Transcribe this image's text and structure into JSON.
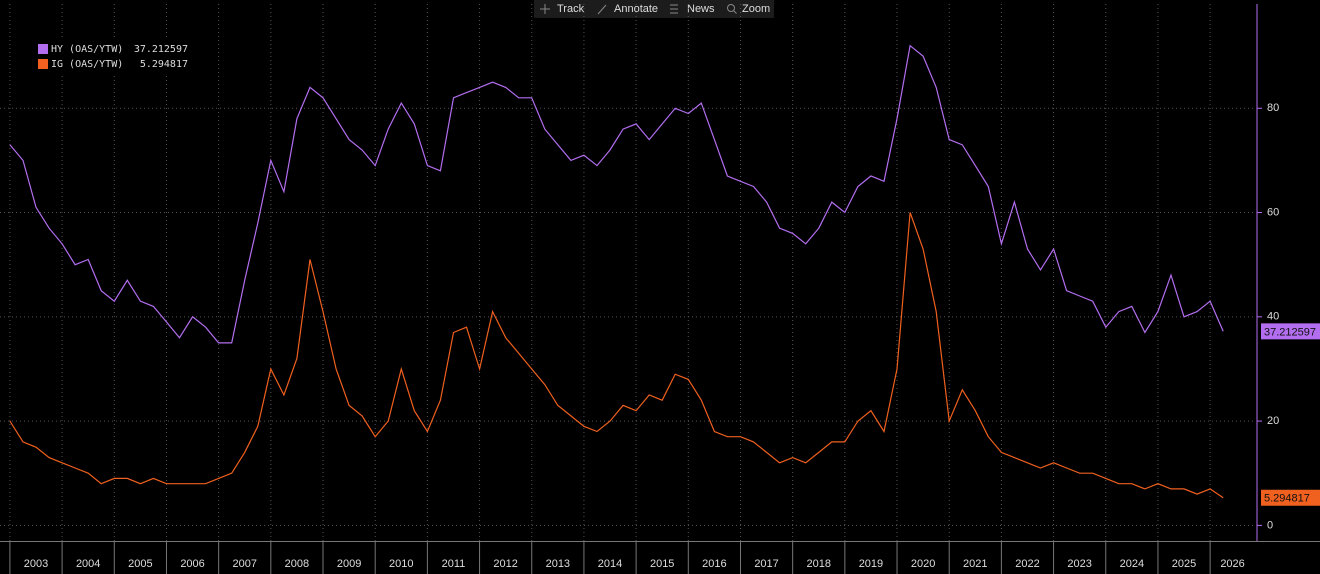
{
  "toolbar": [
    "Track",
    "Annotate",
    "News",
    "Zoom"
  ],
  "chart_data": {
    "type": "line",
    "x": [
      2003,
      2003.25,
      2003.5,
      2003.75,
      2004,
      2004.25,
      2004.5,
      2004.75,
      2005,
      2005.25,
      2005.5,
      2005.75,
      2006,
      2006.25,
      2006.5,
      2006.75,
      2007,
      2007.25,
      2007.5,
      2007.75,
      2008,
      2008.25,
      2008.5,
      2008.75,
      2009,
      2009.25,
      2009.5,
      2009.75,
      2010,
      2010.25,
      2010.5,
      2010.75,
      2011,
      2011.25,
      2011.5,
      2011.75,
      2012,
      2012.25,
      2012.5,
      2012.75,
      2013,
      2013.25,
      2013.5,
      2013.75,
      2014,
      2014.25,
      2014.5,
      2014.75,
      2015,
      2015.25,
      2015.5,
      2015.75,
      2016,
      2016.25,
      2016.5,
      2016.75,
      2017,
      2017.25,
      2017.5,
      2017.75,
      2018,
      2018.25,
      2018.5,
      2018.75,
      2019,
      2019.25,
      2019.5,
      2019.75,
      2020,
      2020.25,
      2020.5,
      2020.75,
      2021,
      2021.25,
      2021.5,
      2021.75,
      2022,
      2022.25,
      2022.5,
      2022.75,
      2023,
      2023.25,
      2023.5,
      2023.75,
      2024,
      2024.25,
      2024.5,
      2024.75,
      2025,
      2025.25,
      2025.5,
      2025.75,
      2026,
      2026.25
    ],
    "series": [
      {
        "name": "HY (OAS/YTW)",
        "color": "#b36ef0",
        "values": [
          73,
          70,
          61,
          57,
          54,
          50,
          51,
          45,
          43,
          47,
          43,
          42,
          39,
          36,
          40,
          38,
          35,
          35,
          47,
          58,
          70,
          64,
          78,
          84,
          82,
          78,
          74,
          72,
          69,
          76,
          81,
          77,
          69,
          68,
          82,
          83,
          84,
          85,
          84,
          82,
          82,
          76,
          73,
          70,
          71,
          69,
          72,
          76,
          77,
          74,
          77,
          80,
          79,
          81,
          74,
          67,
          66,
          65,
          62,
          57,
          56,
          54,
          57,
          62,
          60,
          65,
          67,
          66,
          78,
          92,
          90,
          84,
          74,
          73,
          69,
          65,
          54,
          62,
          53,
          49,
          53,
          45,
          44,
          43,
          38,
          41,
          42,
          37,
          41,
          48,
          40,
          41,
          43,
          37.212597
        ]
      },
      {
        "name": "IG (OAS/YTW)",
        "color": "#f0601e",
        "values": [
          20,
          16,
          15,
          13,
          12,
          11,
          10,
          8,
          9,
          9,
          8,
          9,
          8,
          8,
          8,
          8,
          9,
          10,
          14,
          19,
          30,
          25,
          32,
          51,
          41,
          30,
          23,
          21,
          17,
          20,
          30,
          22,
          18,
          24,
          37,
          38,
          30,
          41,
          36,
          33,
          30,
          27,
          23,
          21,
          19,
          18,
          20,
          23,
          22,
          25,
          24,
          29,
          28,
          24,
          18,
          17,
          17,
          16,
          14,
          12,
          13,
          12,
          14,
          16,
          16,
          20,
          22,
          18,
          30,
          60,
          53,
          41,
          20,
          26,
          22,
          17,
          14,
          13,
          12,
          11,
          12,
          11,
          10,
          10,
          9,
          8,
          8,
          7,
          8,
          7,
          7,
          6,
          7,
          5.294817
        ]
      }
    ],
    "xlim": [
      2002.81,
      2026.86
    ],
    "xticks": [
      {
        "value": 2003,
        "label": "2003"
      },
      {
        "value": 2004,
        "label": "2004"
      },
      {
        "value": 2005,
        "label": "2005"
      },
      {
        "value": 2006,
        "label": "2006"
      },
      {
        "value": 2007,
        "label": "2007"
      },
      {
        "value": 2008,
        "label": "2008"
      },
      {
        "value": 2009,
        "label": "2009"
      },
      {
        "value": 2010,
        "label": "2010"
      },
      {
        "value": 2011,
        "label": "2011"
      },
      {
        "value": 2012,
        "label": "2012"
      },
      {
        "value": 2013,
        "label": "2013"
      },
      {
        "value": 2014,
        "label": "2014"
      },
      {
        "value": 2015,
        "label": "2015"
      },
      {
        "value": 2016,
        "label": "2016"
      },
      {
        "value": 2017,
        "label": "2017"
      },
      {
        "value": 2018,
        "label": "2018"
      },
      {
        "value": 2019,
        "label": "2019"
      },
      {
        "value": 2020,
        "label": "2020"
      },
      {
        "value": 2021,
        "label": "2021"
      },
      {
        "value": 2022,
        "label": "2022"
      },
      {
        "value": 2023,
        "label": "2023"
      },
      {
        "value": 2024,
        "label": "2024"
      },
      {
        "value": 2025,
        "label": "2025"
      },
      {
        "value": 2026,
        "label": "2026"
      }
    ],
    "ylim": [
      -3,
      100
    ],
    "yticks": [
      0,
      20,
      40,
      60,
      80
    ],
    "grid": true,
    "legend": "top-left"
  }
}
